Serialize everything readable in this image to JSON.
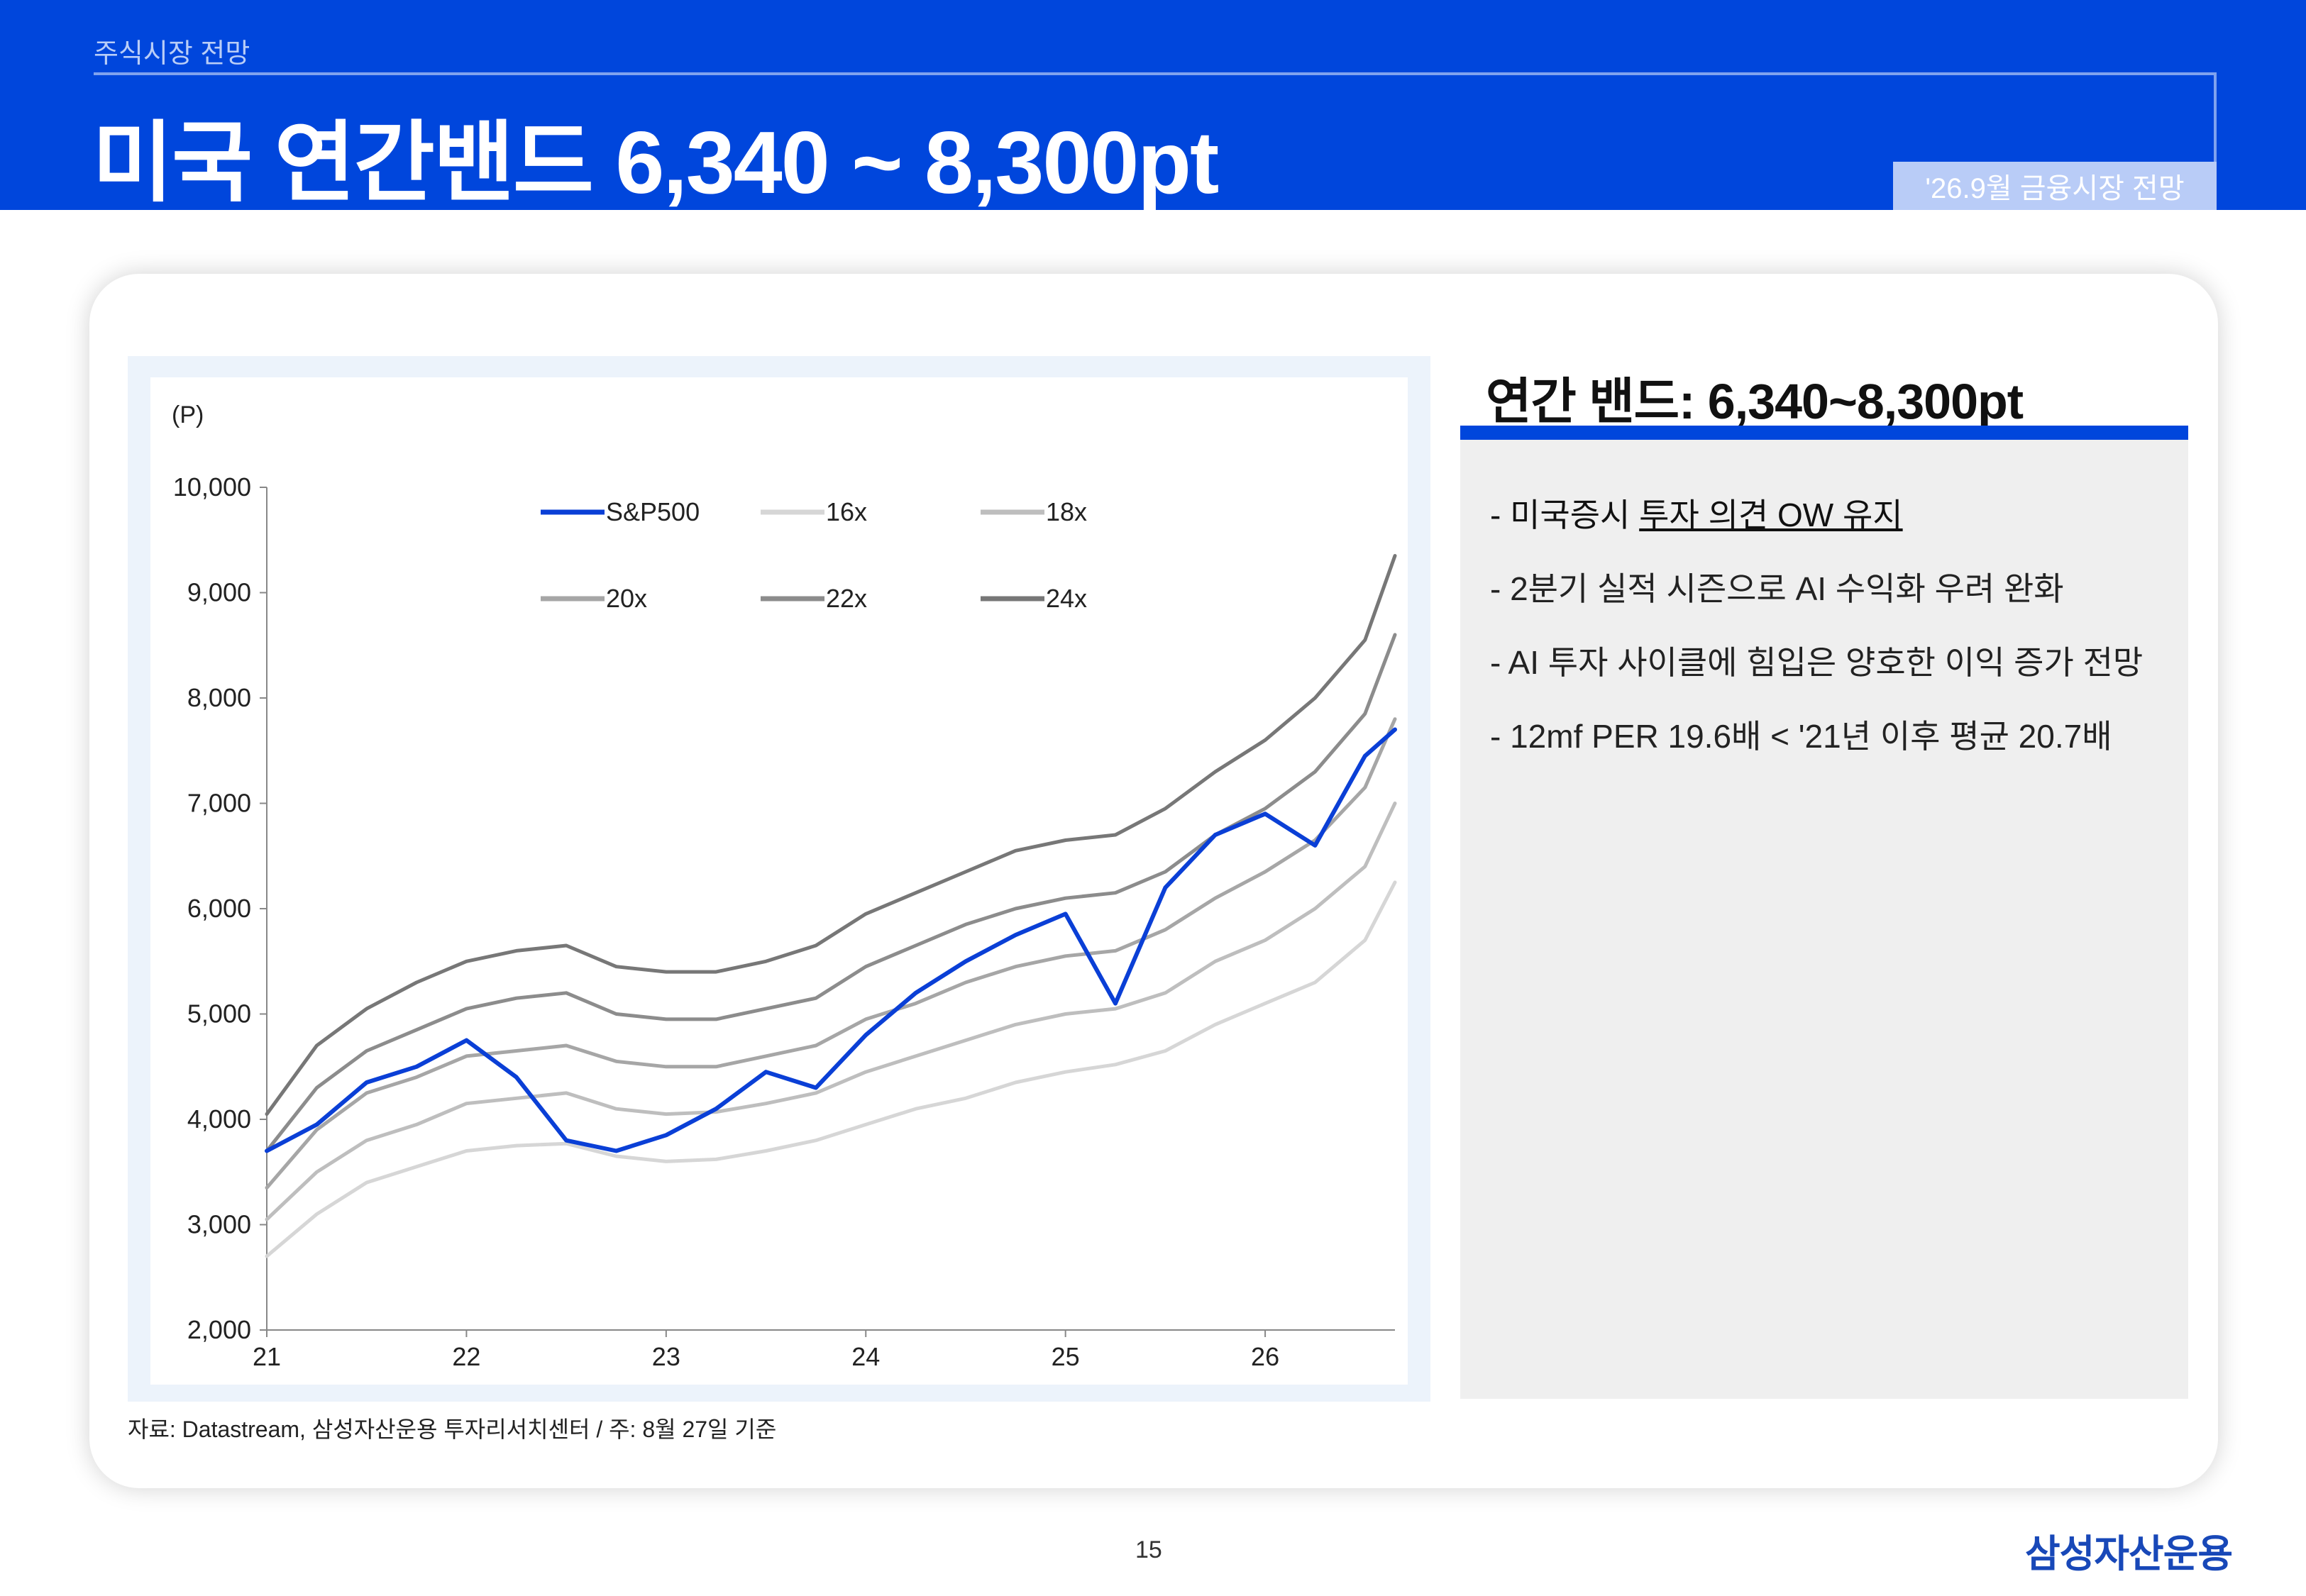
{
  "header": {
    "section": "주식시장 전망",
    "title": "미국 연간밴드 6,340 ~ 8,300pt",
    "report_tag": "'26.9월 금융시장 전망"
  },
  "chart_data": {
    "type": "line",
    "ylabel": "(P)",
    "ylim": [
      2000,
      10000
    ],
    "yticks": [
      "2,000",
      "3,000",
      "4,000",
      "5,000",
      "6,000",
      "7,000",
      "8,000",
      "9,000",
      "10,000"
    ],
    "xlim": [
      2021.0,
      2026.65
    ],
    "xticks": [
      "21",
      "22",
      "23",
      "24",
      "25",
      "26"
    ],
    "x": [
      2021.0,
      2021.25,
      2021.5,
      2021.75,
      2022.0,
      2022.25,
      2022.5,
      2022.75,
      2023.0,
      2023.25,
      2023.5,
      2023.75,
      2024.0,
      2024.25,
      2024.5,
      2024.75,
      2025.0,
      2025.25,
      2025.5,
      2025.75,
      2026.0,
      2026.25,
      2026.5,
      2026.65
    ],
    "series": [
      {
        "name": "S&P500",
        "color": "#0a3fd6",
        "values": [
          3700,
          3950,
          4350,
          4500,
          4750,
          4400,
          3800,
          3700,
          3850,
          4100,
          4450,
          4300,
          4800,
          5200,
          5500,
          5750,
          5950,
          5100,
          6200,
          6700,
          6900,
          6600,
          7450,
          7700
        ]
      },
      {
        "name": "16x",
        "color": "#d6d6d6",
        "values": [
          2700,
          3100,
          3400,
          3550,
          3700,
          3750,
          3770,
          3650,
          3600,
          3620,
          3700,
          3800,
          3950,
          4100,
          4200,
          4350,
          4450,
          4520,
          4650,
          4900,
          5100,
          5300,
          5700,
          6250
        ]
      },
      {
        "name": "18x",
        "color": "#bebebe",
        "values": [
          3050,
          3500,
          3800,
          3950,
          4150,
          4200,
          4250,
          4100,
          4050,
          4070,
          4150,
          4250,
          4450,
          4600,
          4750,
          4900,
          5000,
          5050,
          5200,
          5500,
          5700,
          6000,
          6400,
          7000
        ]
      },
      {
        "name": "20x",
        "color": "#a6a6a6",
        "values": [
          3350,
          3900,
          4250,
          4400,
          4600,
          4650,
          4700,
          4550,
          4500,
          4500,
          4600,
          4700,
          4950,
          5100,
          5300,
          5450,
          5550,
          5600,
          5800,
          6100,
          6350,
          6650,
          7150,
          7800
        ]
      },
      {
        "name": "22x",
        "color": "#8c8c8c",
        "values": [
          3700,
          4300,
          4650,
          4850,
          5050,
          5150,
          5200,
          5000,
          4950,
          4950,
          5050,
          5150,
          5450,
          5650,
          5850,
          6000,
          6100,
          6150,
          6350,
          6700,
          6950,
          7300,
          7850,
          8600
        ]
      },
      {
        "name": "24x",
        "color": "#777777",
        "values": [
          4050,
          4700,
          5050,
          5300,
          5500,
          5600,
          5650,
          5450,
          5400,
          5400,
          5500,
          5650,
          5950,
          6150,
          6350,
          6550,
          6650,
          6700,
          6950,
          7300,
          7600,
          8000,
          8550,
          9350
        ]
      }
    ]
  },
  "source": "자료: Datastream, 삼성자산운용 투자리서치센터 / 주: 8월 27일 기준",
  "side": {
    "title": "연간 밴드: 6,340~8,300pt",
    "bullet_1_prefix": "- 미국증시 ",
    "bullet_1_emph": "투자 의견 OW 유지",
    "bullet_2": "- 2분기 실적 시즌으로 AI 수익화 우려 완화",
    "bullet_3": "- AI 투자 사이클에 힘입은 양호한 이익 증가 전망",
    "bullet_4": "- 12mf PER 19.6배 < '21년 이후 평균 20.7배"
  },
  "footer": {
    "page": "15",
    "logo": "삼성자산운용"
  }
}
